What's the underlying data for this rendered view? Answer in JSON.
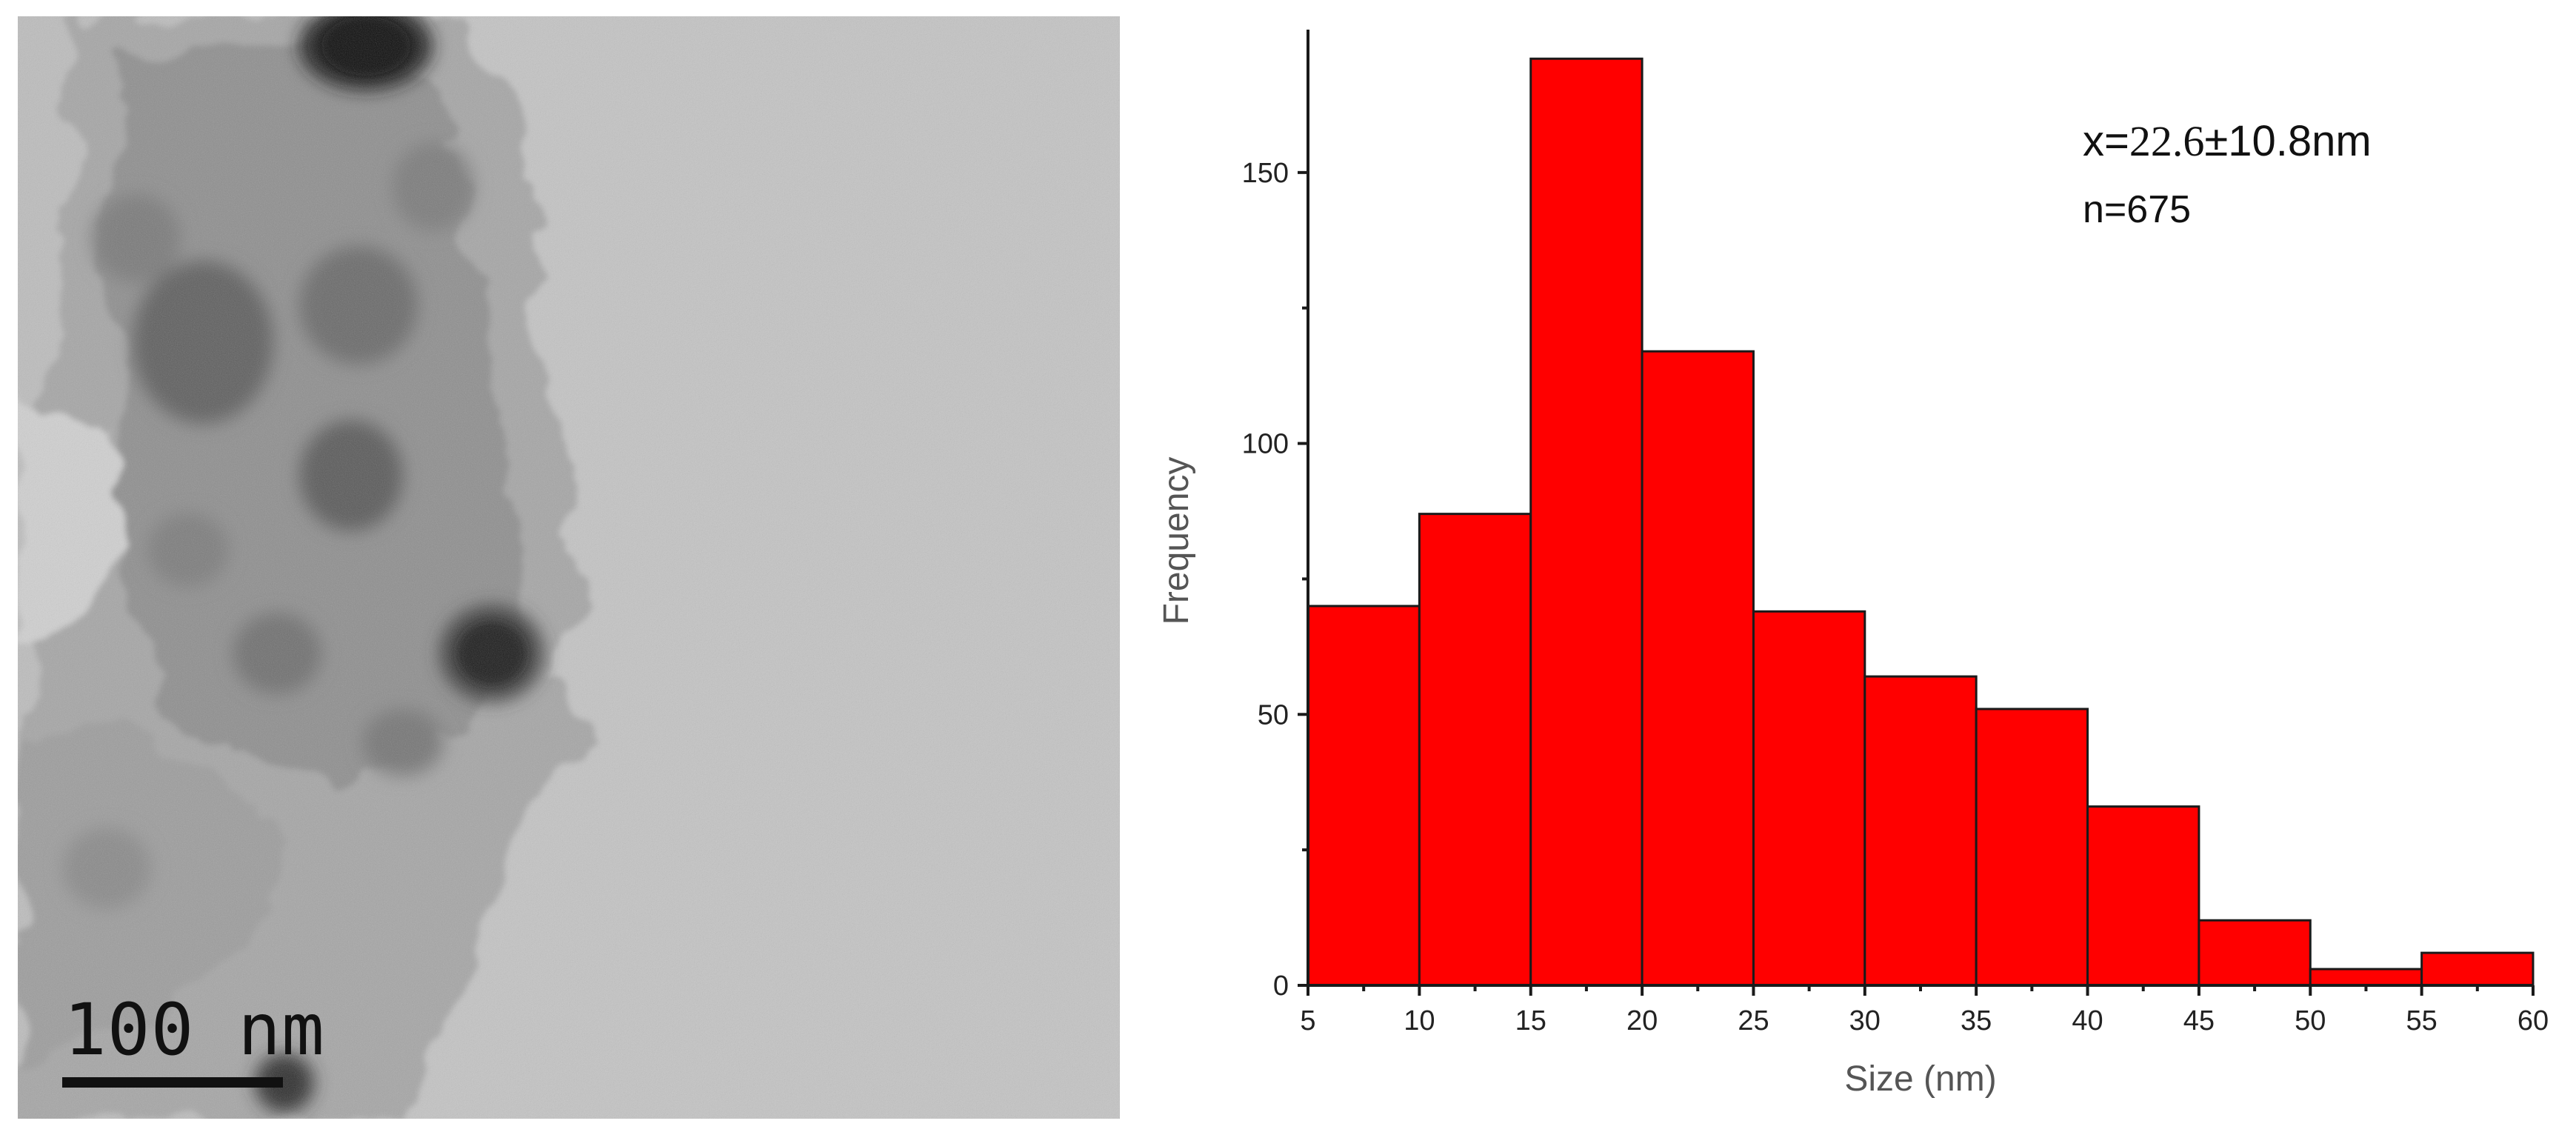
{
  "micrograph": {
    "scale_label": "100 nm"
  },
  "chart_data": {
    "type": "bar",
    "bin_edges": [
      5,
      10,
      15,
      20,
      25,
      30,
      35,
      40,
      45,
      50,
      55,
      60
    ],
    "values": [
      70,
      87,
      171,
      117,
      69,
      57,
      51,
      33,
      12,
      3,
      6
    ],
    "xlabel": "Size (nm)",
    "ylabel": "Frequency",
    "xlim": [
      5,
      60
    ],
    "ylim": [
      0,
      175
    ],
    "x_ticks": [
      5,
      10,
      15,
      20,
      25,
      30,
      35,
      40,
      45,
      50,
      55,
      60
    ],
    "y_ticks": [
      0,
      50,
      100,
      150
    ],
    "bar_color": "#ff0000",
    "grid": false,
    "annotations": {
      "mean_prefix": "x=",
      "mean_value": "22.6",
      "mean_rest": "±10.8nm",
      "count": "n=675"
    }
  }
}
